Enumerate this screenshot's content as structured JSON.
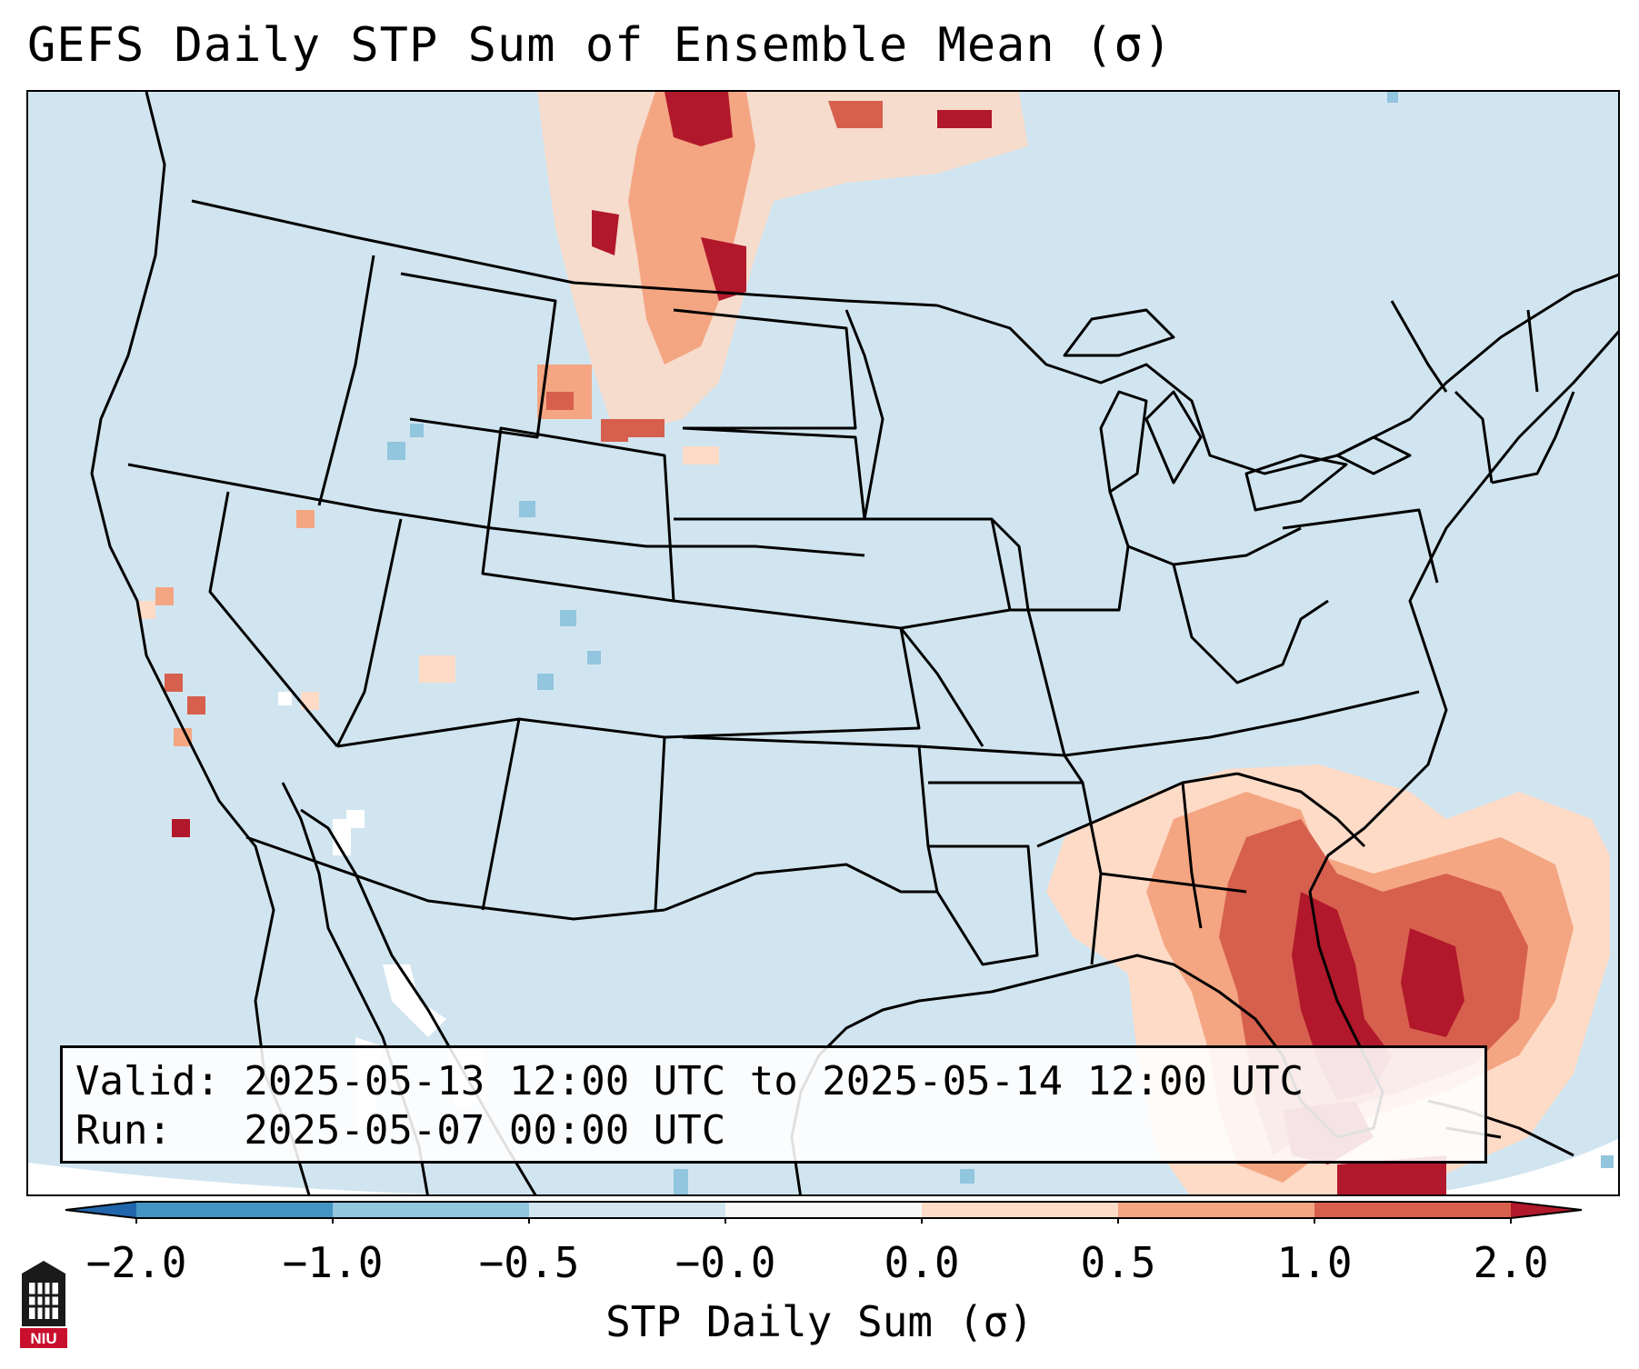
{
  "title": "GEFS Daily STP Sum of Ensemble Mean (σ)",
  "info": {
    "valid_line": "Valid: 2025-05-13 12:00 UTC to 2025-05-14 12:00 UTC",
    "run_line": "Run:   2025-05-07 00:00 UTC"
  },
  "colorbar": {
    "label": "STP Daily Sum (σ)",
    "ticks": [
      "−2.0",
      "−1.0",
      "−0.5",
      "−0.0",
      "0.0",
      "0.5",
      "1.0",
      "2.0"
    ],
    "colors": {
      "below_min": "#2166ac",
      "neg_2_to_1": "#4393c3",
      "neg_1_to_05": "#92c5de",
      "neg_05_to_0": "#d1e5f0",
      "neg0_to_0": "#f7f7f7",
      "zero_to_05": "#fddbc7",
      "half_to_1": "#f4a582",
      "one_to_2": "#d6604d",
      "above_max": "#b2182b"
    }
  },
  "map": {
    "background_color": "#d1e5f0",
    "hotspots": [
      {
        "region": "southeast-florida-gulf",
        "level": "high"
      },
      {
        "region": "northern-plains-rockies",
        "level": "moderate"
      },
      {
        "region": "california-coast",
        "level": "scattered"
      }
    ]
  },
  "logo": {
    "text": "NIU"
  }
}
